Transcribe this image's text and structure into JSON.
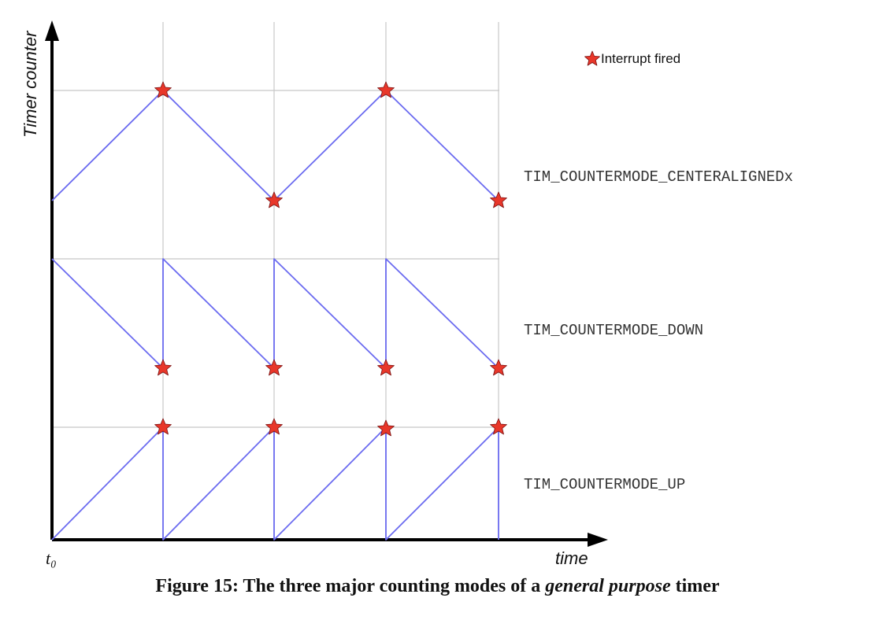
{
  "figure": {
    "y_axis_label": "Timer counter",
    "x_axis_label": "time",
    "origin_label": "t₀",
    "legend_label": "Interrupt fired",
    "modes": [
      {
        "id": "centeraligned",
        "label": "TIM_COUNTERMODE_CENTERALIGNEDx"
      },
      {
        "id": "down",
        "label": "TIM_COUNTERMODE_DOWN"
      },
      {
        "id": "up",
        "label": "TIM_COUNTERMODE_UP"
      }
    ],
    "colors": {
      "signal": "#6b6bf0",
      "star": "#e8372a",
      "grid": "#c8c8c8",
      "axis": "#000000"
    }
  },
  "caption": {
    "prefix": "Figure 15: The three major counting modes of a ",
    "emphasis": "general purpose",
    "suffix": " timer"
  }
}
